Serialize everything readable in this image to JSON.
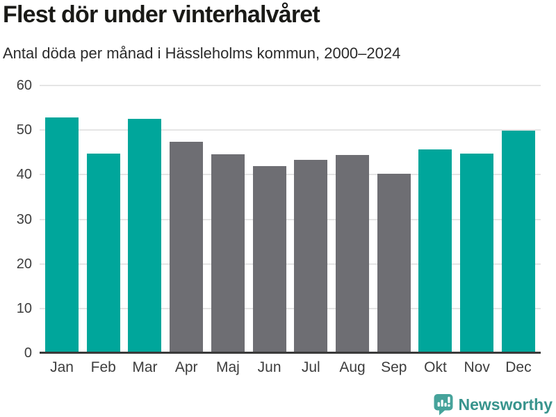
{
  "header": {
    "title": "Flest dör under vinterhalvåret",
    "subtitle": "Antal döda per månad i Hässleholms kommun, 2000–2024"
  },
  "chart_data": {
    "type": "bar",
    "title": "Flest dör under vinterhalvåret",
    "subtitle": "Antal döda per månad i Hässleholms kommun, 2000–2024",
    "categories": [
      "Jan",
      "Feb",
      "Mar",
      "Apr",
      "Maj",
      "Jun",
      "Jul",
      "Aug",
      "Sep",
      "Okt",
      "Nov",
      "Dec"
    ],
    "values": [
      52.9,
      44.7,
      52.5,
      47.4,
      44.6,
      42.0,
      43.4,
      44.5,
      40.2,
      45.6,
      44.7,
      49.8
    ],
    "groups": [
      "winter",
      "winter",
      "winter",
      "summer",
      "summer",
      "summer",
      "summer",
      "summer",
      "summer",
      "winter",
      "winter",
      "winter"
    ],
    "palette": {
      "winter": "#00A69B",
      "summer": "#6E6E73"
    },
    "xlabel": "",
    "ylabel": "",
    "ylim": [
      0,
      60
    ],
    "yticks": [
      0,
      10,
      20,
      30,
      40,
      50,
      60
    ],
    "grid": true,
    "legend_position": "none"
  },
  "colors": {
    "highlight": "#00A69B",
    "neutral": "#6E6E73",
    "gridline": "#E5E5E5",
    "axis_line": "#3A3A3A",
    "tick_label": "#3D3D3D",
    "title_text": "#1A1A17",
    "subtitle_text": "#2B2B2B",
    "background": "#FFFFFF",
    "brand_teal": "#38948D",
    "brand_icon_teal": "#46A39B"
  },
  "footer": {
    "brand": "Newsworthy"
  }
}
